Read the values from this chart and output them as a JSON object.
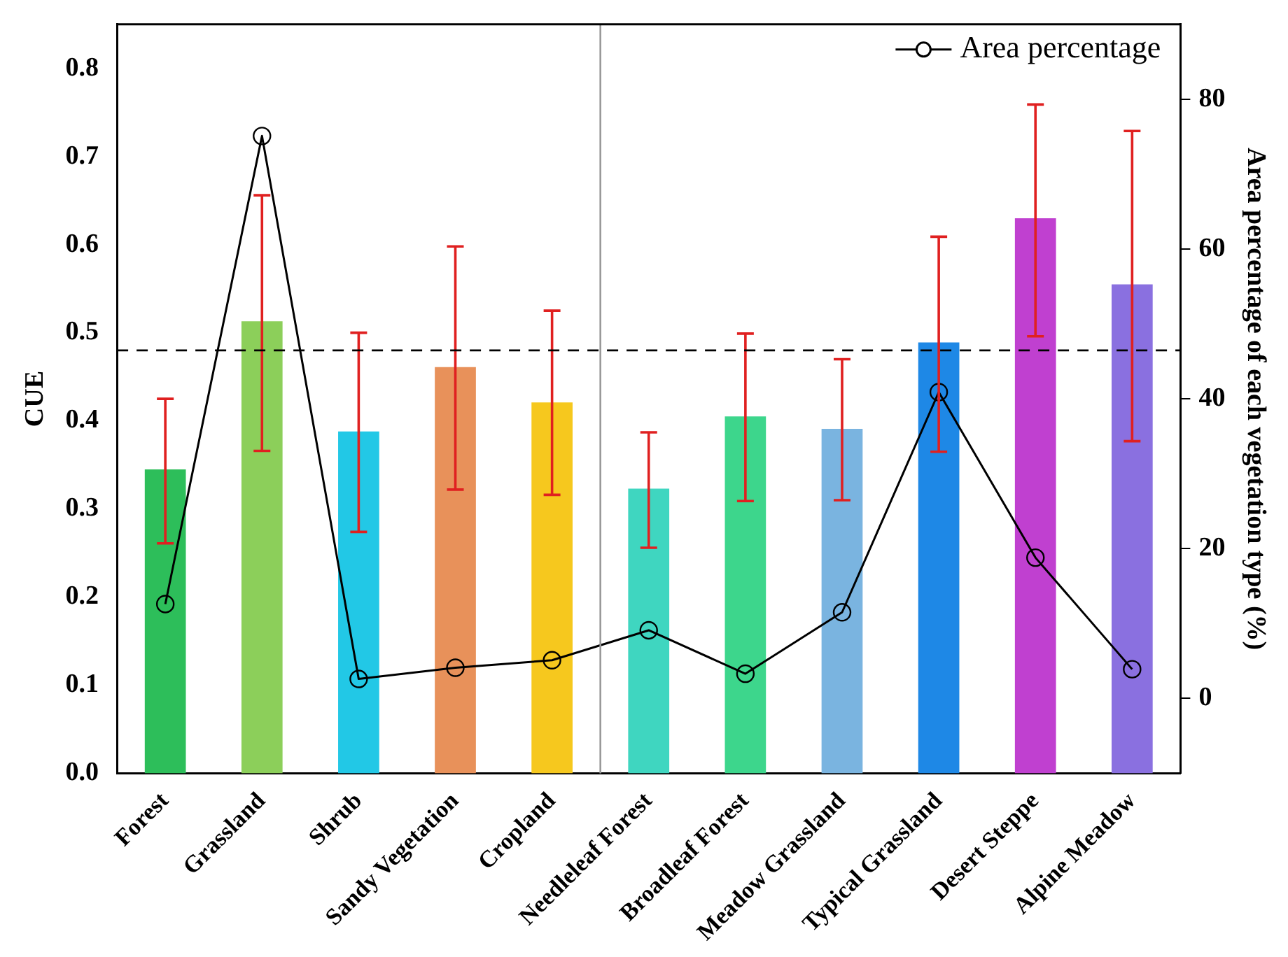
{
  "chart_data": {
    "type": "bar",
    "ylabel": "CUE",
    "y2label": "Area percentage of each vegetation type (%)",
    "categories": [
      "Forest",
      "Grassland",
      "Shrub",
      "Sandy Vegetation",
      "Cropland",
      "Needleleaf Forest",
      "Broadleaf Forest",
      "Meadow Grassland",
      "Typical Grassland",
      "Desert Steppe",
      "Alpine Meadow"
    ],
    "series": [
      {
        "colors": [
          "#2dbe5a",
          "#8ccf5a",
          "#22c8e6",
          "#e8915a",
          "#f6c81e",
          "#3fd6c0",
          "#3dd68c",
          "#7ab4e0",
          "#1e88e6",
          "#c040d0",
          "#8a70e0"
        ],
        "values": [
          0.345,
          0.513,
          0.388,
          0.461,
          0.421,
          0.323,
          0.405,
          0.391,
          0.489,
          0.63,
          0.555
        ],
        "errors": [
          [
            0.261,
            0.425
          ],
          [
            0.366,
            0.656
          ],
          [
            0.274,
            0.5
          ],
          [
            0.322,
            0.598
          ],
          [
            0.316,
            0.525
          ],
          [
            0.256,
            0.387
          ],
          [
            0.309,
            0.499
          ],
          [
            0.31,
            0.47
          ],
          [
            0.365,
            0.609
          ],
          [
            0.496,
            0.759
          ],
          [
            0.377,
            0.729
          ]
        ]
      },
      {
        "type": "line",
        "name": "Area percentage",
        "axis": "y2",
        "color": "#000000",
        "marker": "circle",
        "values": [
          12.6,
          75.1,
          2.6,
          4.1,
          5.1,
          9.1,
          3.3,
          11.5,
          40.9,
          18.8,
          3.9
        ]
      }
    ],
    "ylim": [
      0,
      0.85
    ],
    "yticks": [
      {
        "value": 0,
        "label": "0.0"
      },
      {
        "value": 0.1,
        "label": "0.1"
      },
      {
        "value": 0.2,
        "label": "0.2"
      },
      {
        "value": 0.3,
        "label": "0.3"
      },
      {
        "value": 0.4,
        "label": "0.4"
      },
      {
        "value": 0.5,
        "label": "0.5"
      },
      {
        "value": 0.6,
        "label": "0.6"
      },
      {
        "value": 0.7,
        "label": "0.7"
      },
      {
        "value": 0.8,
        "label": "0.8"
      }
    ],
    "y2lim": [
      -10,
      90
    ],
    "y2ticks": [
      0,
      20,
      40,
      60,
      80
    ],
    "ref_lines": [
      {
        "axis": "y",
        "value": 0.48,
        "color": "#000000",
        "line_style": "dashed"
      }
    ],
    "legend": "top right",
    "grid": false
  }
}
